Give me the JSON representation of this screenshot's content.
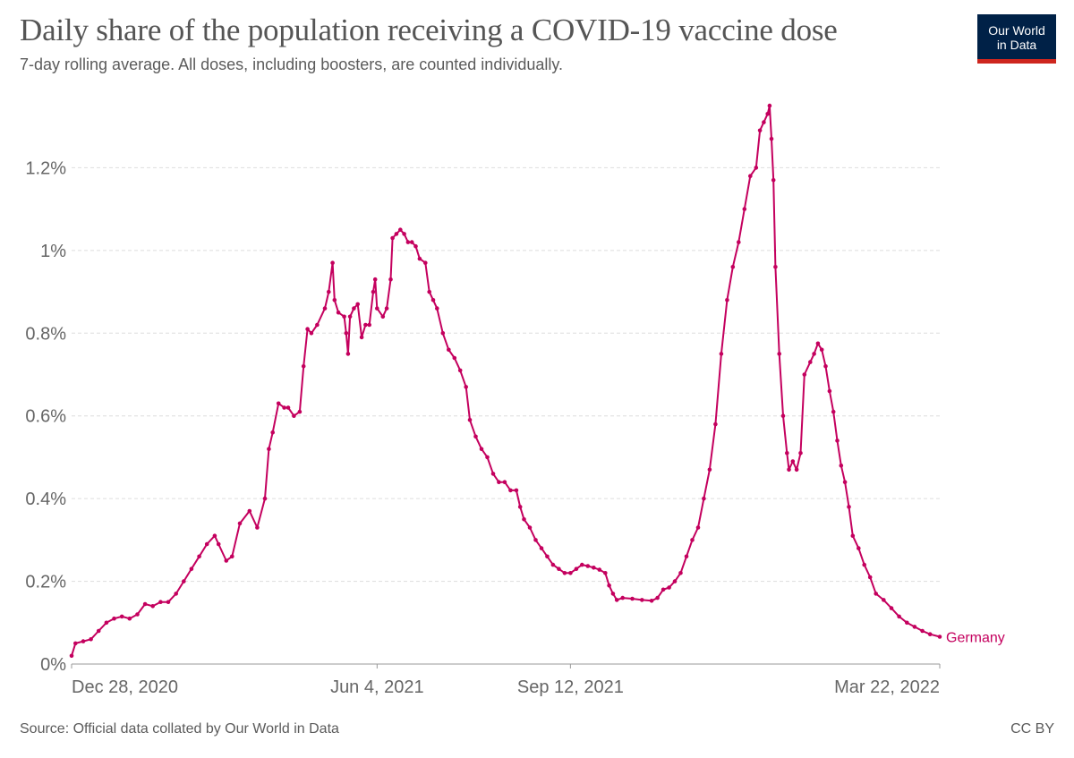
{
  "header": {
    "title": "Daily share of the population receiving a COVID-19 vaccine dose",
    "subtitle": "7-day rolling average. All doses, including boosters, are counted individually."
  },
  "logo": {
    "line1": "Our World",
    "line2": "in Data",
    "bg_color": "#002147",
    "accent_color": "#ce261e"
  },
  "footer": {
    "source": "Source: Official data collated by Our World in Data",
    "license": "CC BY"
  },
  "chart_data": {
    "type": "line",
    "title": "Daily share of the population receiving a COVID-19 vaccine dose",
    "subtitle": "7-day rolling average. All doses, including boosters, are counted individually.",
    "xlabel": "",
    "ylabel": "",
    "x_unit": "days since Dec 28, 2020",
    "xlim": [
      0,
      449
    ],
    "ylim": [
      0,
      1.4
    ],
    "y_ticks": [
      {
        "value": 0,
        "label": "0%"
      },
      {
        "value": 0.2,
        "label": "0.2%"
      },
      {
        "value": 0.4,
        "label": "0.4%"
      },
      {
        "value": 0.6,
        "label": "0.6%"
      },
      {
        "value": 0.8,
        "label": "0.8%"
      },
      {
        "value": 1.0,
        "label": "1%"
      },
      {
        "value": 1.2,
        "label": "1.2%"
      }
    ],
    "x_ticks": [
      {
        "value": 0,
        "label": "Dec 28, 2020"
      },
      {
        "value": 158,
        "label": "Jun 4, 2021"
      },
      {
        "value": 258,
        "label": "Sep 12, 2021"
      },
      {
        "value": 449,
        "label": "Mar 22, 2022"
      }
    ],
    "grid": true,
    "series": [
      {
        "name": "Germany",
        "color": "#c4005e",
        "points": [
          [
            0,
            0.02
          ],
          [
            2,
            0.05
          ],
          [
            6,
            0.055
          ],
          [
            10,
            0.06
          ],
          [
            14,
            0.08
          ],
          [
            18,
            0.1
          ],
          [
            22,
            0.11
          ],
          [
            26,
            0.115
          ],
          [
            30,
            0.11
          ],
          [
            34,
            0.12
          ],
          [
            38,
            0.145
          ],
          [
            42,
            0.14
          ],
          [
            46,
            0.15
          ],
          [
            50,
            0.15
          ],
          [
            54,
            0.17
          ],
          [
            58,
            0.2
          ],
          [
            62,
            0.23
          ],
          [
            66,
            0.26
          ],
          [
            70,
            0.29
          ],
          [
            74,
            0.31
          ],
          [
            76,
            0.29
          ],
          [
            80,
            0.25
          ],
          [
            83,
            0.26
          ],
          [
            87,
            0.34
          ],
          [
            92,
            0.37
          ],
          [
            96,
            0.33
          ],
          [
            100,
            0.4
          ],
          [
            102,
            0.52
          ],
          [
            104,
            0.56
          ],
          [
            107,
            0.63
          ],
          [
            110,
            0.62
          ],
          [
            112,
            0.62
          ],
          [
            115,
            0.6
          ],
          [
            118,
            0.61
          ],
          [
            120,
            0.72
          ],
          [
            122,
            0.81
          ],
          [
            124,
            0.8
          ],
          [
            127,
            0.82
          ],
          [
            131,
            0.86
          ],
          [
            133,
            0.9
          ],
          [
            135,
            0.97
          ],
          [
            136,
            0.88
          ],
          [
            138,
            0.85
          ],
          [
            141,
            0.84
          ],
          [
            142,
            0.8
          ],
          [
            143,
            0.75
          ],
          [
            144,
            0.84
          ],
          [
            146,
            0.86
          ],
          [
            148,
            0.87
          ],
          [
            150,
            0.79
          ],
          [
            152,
            0.82
          ],
          [
            154,
            0.82
          ],
          [
            156,
            0.9
          ],
          [
            157,
            0.93
          ],
          [
            158,
            0.86
          ],
          [
            161,
            0.84
          ],
          [
            163,
            0.86
          ],
          [
            165,
            0.93
          ],
          [
            166,
            1.03
          ],
          [
            168,
            1.04
          ],
          [
            170,
            1.05
          ],
          [
            172,
            1.04
          ],
          [
            174,
            1.02
          ],
          [
            176,
            1.02
          ],
          [
            178,
            1.01
          ],
          [
            180,
            0.98
          ],
          [
            183,
            0.97
          ],
          [
            185,
            0.9
          ],
          [
            187,
            0.88
          ],
          [
            189,
            0.86
          ],
          [
            192,
            0.8
          ],
          [
            195,
            0.76
          ],
          [
            198,
            0.74
          ],
          [
            201,
            0.71
          ],
          [
            204,
            0.67
          ],
          [
            206,
            0.59
          ],
          [
            209,
            0.55
          ],
          [
            212,
            0.52
          ],
          [
            215,
            0.5
          ],
          [
            218,
            0.46
          ],
          [
            221,
            0.44
          ],
          [
            224,
            0.44
          ],
          [
            227,
            0.42
          ],
          [
            230,
            0.42
          ],
          [
            232,
            0.38
          ],
          [
            234,
            0.35
          ],
          [
            237,
            0.33
          ],
          [
            240,
            0.3
          ],
          [
            243,
            0.28
          ],
          [
            246,
            0.26
          ],
          [
            249,
            0.24
          ],
          [
            252,
            0.23
          ],
          [
            255,
            0.22
          ],
          [
            258,
            0.22
          ],
          [
            261,
            0.23
          ],
          [
            264,
            0.24
          ],
          [
            267,
            0.237
          ],
          [
            270,
            0.233
          ],
          [
            273,
            0.228
          ],
          [
            276,
            0.22
          ],
          [
            278,
            0.19
          ],
          [
            280,
            0.17
          ],
          [
            282,
            0.155
          ],
          [
            285,
            0.16
          ],
          [
            290,
            0.158
          ],
          [
            295,
            0.155
          ],
          [
            300,
            0.153
          ],
          [
            303,
            0.16
          ],
          [
            306,
            0.18
          ],
          [
            309,
            0.185
          ],
          [
            312,
            0.2
          ],
          [
            315,
            0.22
          ],
          [
            318,
            0.26
          ],
          [
            321,
            0.3
          ],
          [
            324,
            0.33
          ],
          [
            327,
            0.4
          ],
          [
            330,
            0.47
          ],
          [
            333,
            0.58
          ],
          [
            336,
            0.75
          ],
          [
            339,
            0.88
          ],
          [
            342,
            0.96
          ],
          [
            345,
            1.02
          ],
          [
            348,
            1.1
          ],
          [
            351,
            1.18
          ],
          [
            354,
            1.2
          ],
          [
            356,
            1.29
          ],
          [
            358,
            1.31
          ],
          [
            360,
            1.33
          ],
          [
            361,
            1.35
          ],
          [
            362,
            1.27
          ],
          [
            363,
            1.17
          ],
          [
            364,
            0.96
          ],
          [
            366,
            0.75
          ],
          [
            368,
            0.6
          ],
          [
            370,
            0.51
          ],
          [
            371,
            0.47
          ],
          [
            373,
            0.49
          ],
          [
            375,
            0.47
          ],
          [
            377,
            0.51
          ],
          [
            379,
            0.7
          ],
          [
            382,
            0.73
          ],
          [
            384,
            0.75
          ],
          [
            386,
            0.775
          ],
          [
            388,
            0.76
          ],
          [
            390,
            0.72
          ],
          [
            392,
            0.66
          ],
          [
            394,
            0.61
          ],
          [
            396,
            0.54
          ],
          [
            398,
            0.48
          ],
          [
            400,
            0.44
          ],
          [
            402,
            0.38
          ],
          [
            404,
            0.31
          ],
          [
            407,
            0.28
          ],
          [
            410,
            0.24
          ],
          [
            413,
            0.21
          ],
          [
            416,
            0.17
          ],
          [
            420,
            0.155
          ],
          [
            424,
            0.135
          ],
          [
            428,
            0.115
          ],
          [
            432,
            0.1
          ],
          [
            436,
            0.09
          ],
          [
            440,
            0.08
          ],
          [
            444,
            0.072
          ],
          [
            449,
            0.066
          ]
        ]
      }
    ]
  }
}
